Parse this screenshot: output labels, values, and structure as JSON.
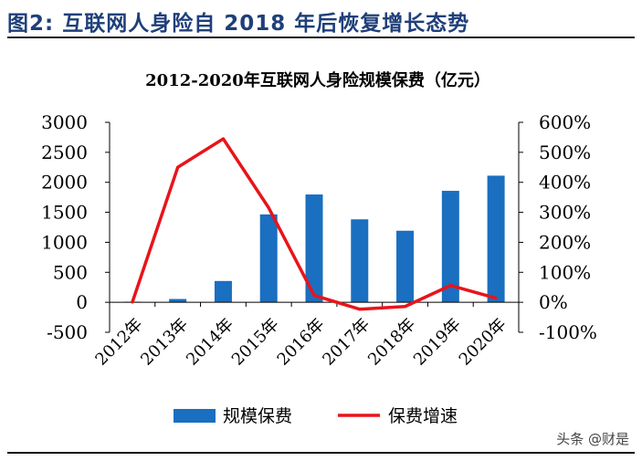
{
  "figure_title": "图2:  互联网人身险自 2018 年后恢复增长态势",
  "watermark": "头条 @财是",
  "chart_data": {
    "type": "bar",
    "title": "2012-2020年互联网人身险规模保费（亿元）",
    "categories": [
      "2012年",
      "2013年",
      "2014年",
      "2015年",
      "2016年",
      "2017年",
      "2018年",
      "2019年",
      "2020年"
    ],
    "series": [
      {
        "name": "规模保费",
        "type": "bar",
        "axis": "left",
        "color": "#1a6fc0",
        "values": [
          10,
          55,
          355,
          1465,
          1797,
          1383,
          1193,
          1858,
          2111
        ]
      },
      {
        "name": "保费增速",
        "type": "line",
        "axis": "right",
        "color": "#e8141b",
        "values": [
          0,
          450,
          545,
          315,
          23,
          -23,
          -14,
          56,
          14
        ]
      }
    ],
    "y_left": {
      "min": -500,
      "max": 3000,
      "ticks": [
        -500,
        0,
        500,
        1000,
        1500,
        2000,
        2500,
        3000
      ],
      "tick_labels": [
        "-500",
        "0",
        "500",
        "1000",
        "1500",
        "2000",
        "2500",
        "3000"
      ]
    },
    "y_right": {
      "min": -100,
      "max": 600,
      "ticks": [
        -100,
        0,
        100,
        200,
        300,
        400,
        500,
        600
      ],
      "tick_labels": [
        "-100%",
        "0%",
        "100%",
        "200%",
        "300%",
        "400%",
        "500%",
        "600%"
      ]
    },
    "grid": false,
    "legend_position": "bottom"
  }
}
